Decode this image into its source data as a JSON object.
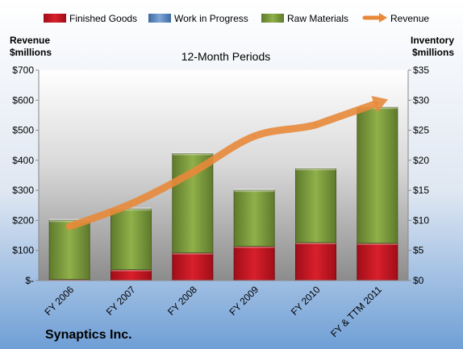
{
  "chart_data": {
    "type": "bar",
    "subtype": "stacked-with-line",
    "title": "12-Month Periods",
    "company": "Synaptics Inc.",
    "categories": [
      "FY 2006",
      "FY 2007",
      "FY 2008",
      "FY 2009",
      "FY 2010",
      "FY & TTM 2011"
    ],
    "left_axis": {
      "label_line1": "Revenue",
      "label_line2": "$millions",
      "ylim": [
        0,
        700
      ],
      "ticks": [
        0,
        100,
        200,
        300,
        400,
        500,
        600,
        700
      ],
      "tick_labels": [
        "$-",
        "$100",
        "$200",
        "$300",
        "$400",
        "$500",
        "$600",
        "$700"
      ]
    },
    "right_axis": {
      "label_line1": "Inventory",
      "label_line2": "$millions",
      "ylim": [
        0,
        35
      ],
      "ticks": [
        0,
        5,
        10,
        15,
        20,
        25,
        30,
        35
      ],
      "tick_labels": [
        "$0",
        "$5",
        "$10",
        "$15",
        "$20",
        "$25",
        "$30",
        "$35"
      ]
    },
    "series": [
      {
        "name": "Finished Goods",
        "kind": "bar",
        "axis": "right",
        "color": "#c0101c",
        "values": [
          0.2,
          1.8,
          4.6,
          5.7,
          6.3,
          6.2
        ]
      },
      {
        "name": "Work in Progress",
        "kind": "bar",
        "axis": "right",
        "color": "#4f81bd",
        "values": [
          0,
          0,
          0,
          0,
          0,
          0
        ]
      },
      {
        "name": "Raw Materials",
        "kind": "bar",
        "axis": "right",
        "color": "#77933c",
        "values": [
          9.8,
          10.1,
          16.5,
          9.3,
          12.3,
          22.6
        ]
      },
      {
        "name": "Revenue",
        "kind": "line",
        "axis": "left",
        "color": "#e8893a",
        "values": [
          180,
          255,
          360,
          480,
          518,
          590
        ]
      }
    ],
    "legend_position": "top",
    "grid": false
  }
}
